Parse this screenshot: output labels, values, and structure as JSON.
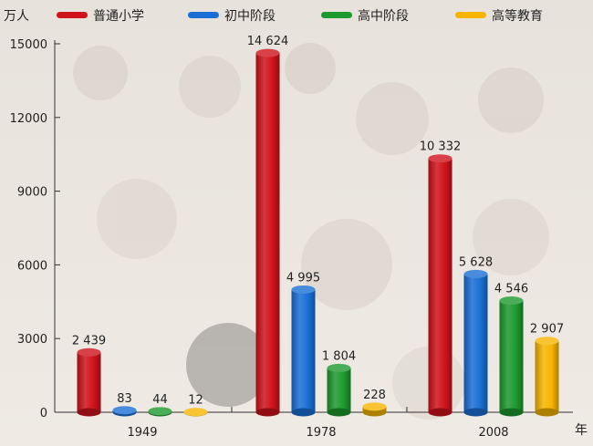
{
  "chart_data": {
    "type": "bar",
    "title": "",
    "ylabel": "万人",
    "xlabel": "年",
    "ylim": [
      0,
      15000
    ],
    "yticks": [
      0,
      3000,
      6000,
      9000,
      12000,
      15000
    ],
    "ytick_labels": [
      "0",
      "3000",
      "6000",
      "9000",
      "12000",
      "15000"
    ],
    "categories": [
      "1949",
      "1978",
      "2008"
    ],
    "legend_position": "top",
    "grid": false,
    "series": [
      {
        "name": "普通小学",
        "color": "#d0121b",
        "values": [
          2439,
          14624,
          10332
        ],
        "labels": [
          "2 439",
          "14 624",
          "10 332"
        ]
      },
      {
        "name": "初中阶段",
        "color": "#1a6fd6",
        "values": [
          83,
          4995,
          5628
        ],
        "labels": [
          "83",
          "4 995",
          "5 628"
        ]
      },
      {
        "name": "高中阶段",
        "color": "#1d9a2e",
        "values": [
          44,
          1804,
          4546
        ],
        "labels": [
          "44",
          "1 804",
          "4 546"
        ]
      },
      {
        "name": "高等教育",
        "color": "#f7b500",
        "values": [
          12,
          228,
          2907
        ],
        "labels": [
          "12",
          "228",
          "2 907"
        ]
      }
    ]
  }
}
